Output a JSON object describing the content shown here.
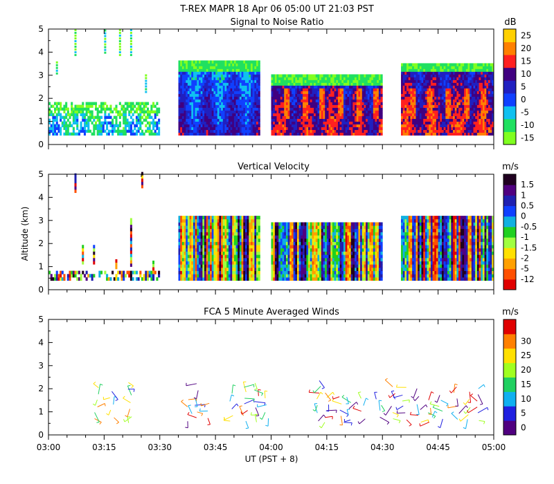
{
  "header": {
    "title": "T-REX  MAPR 18 Apr 06  05:00 UT  21:03  PST"
  },
  "xaxis": {
    "label": "UT  (PST + 8)",
    "tick_labels": [
      "03:00",
      "03:15",
      "03:30",
      "03:45",
      "04:00",
      "04:15",
      "04:30",
      "04:45",
      "05:00"
    ]
  },
  "ylabel": "Altitude (km)",
  "chart_data": [
    {
      "type": "heatmap",
      "title": "Signal to Noise Ratio",
      "xlim_minutes_after_0300": [
        0,
        120
      ],
      "ylim_km": [
        0,
        5
      ],
      "yticks": [
        "0",
        "1",
        "2",
        "3",
        "4",
        "5"
      ],
      "colorbar": {
        "unit": "dB",
        "levels": [
          "-15",
          "-10",
          "-5",
          "0",
          "5",
          "10",
          "15",
          "20",
          "25"
        ],
        "colors": [
          "#80ff20",
          "#20e060",
          "#10c0f0",
          "#1040ff",
          "#2020c0",
          "#400080",
          "#ff2020",
          "#ff8000",
          "#ffd000"
        ]
      },
      "data_segments_minutes": [
        [
          0,
          30
        ],
        [
          35,
          57
        ],
        [
          60,
          90
        ],
        [
          95,
          120
        ]
      ]
    },
    {
      "type": "heatmap",
      "title": "Vertical Velocity",
      "xlim_minutes_after_0300": [
        0,
        120
      ],
      "ylim_km": [
        0,
        5
      ],
      "yticks": [
        "0",
        "1",
        "2",
        "3",
        "4",
        "5"
      ],
      "colorbar": {
        "unit": "m/s",
        "levels": [
          "1.5",
          "1",
          "0.5",
          "0",
          "-0.5",
          "-1",
          "-1.5",
          "-2",
          "-5",
          "-12"
        ],
        "colors": [
          "#e00000",
          "#ff5000",
          "#ffa000",
          "#ffe000",
          "#a0ff40",
          "#20d020",
          "#10b0e0",
          "#1040ff",
          "#2020b0",
          "#500080",
          "#200020"
        ]
      },
      "data_segments_minutes": [
        [
          0,
          30
        ],
        [
          35,
          57
        ],
        [
          60,
          90
        ],
        [
          95,
          120
        ]
      ]
    },
    {
      "type": "scatter",
      "title": "FCA 5 Minute Averaged Winds",
      "xlim_minutes_after_0300": [
        0,
        120
      ],
      "ylim_km": [
        0,
        5
      ],
      "yticks": [
        "0",
        "1",
        "2",
        "3",
        "4",
        "5"
      ],
      "colorbar": {
        "unit": "m/s",
        "levels": [
          "0",
          "5",
          "10",
          "15",
          "20",
          "25",
          "30"
        ],
        "colors": [
          "#500080",
          "#2020e0",
          "#10b0f0",
          "#20d060",
          "#a0ff20",
          "#ffe000",
          "#ff8000",
          "#e00000"
        ]
      },
      "barb_time_columns_minutes": [
        13,
        17,
        22,
        38,
        40,
        43,
        49,
        53,
        56,
        59,
        73,
        75,
        79,
        81,
        85,
        89,
        93,
        96,
        100,
        103,
        106,
        110,
        113,
        116
      ]
    }
  ]
}
